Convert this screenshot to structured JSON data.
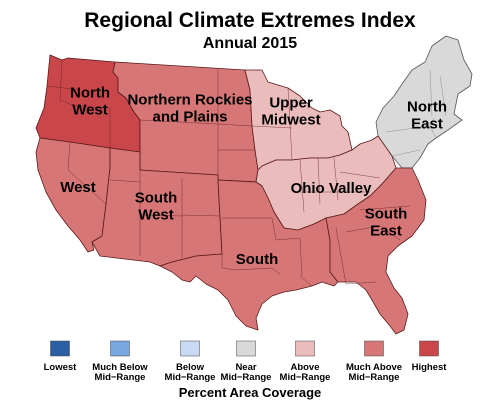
{
  "title": "Regional Climate Extremes Index",
  "subtitle": "Annual 2015",
  "regions": [
    {
      "id": "north-west",
      "lines": [
        "North",
        "West"
      ],
      "category": "Highest"
    },
    {
      "id": "northern-rockies-and-plains",
      "lines": [
        "Northern Rockies",
        "and Plains"
      ],
      "category": "Much Above Mid-Range"
    },
    {
      "id": "upper-midwest",
      "lines": [
        "Upper",
        "Midwest"
      ],
      "category": "Above Mid-Range"
    },
    {
      "id": "north-east",
      "lines": [
        "North",
        "East"
      ],
      "category": "Near Mid-Range"
    },
    {
      "id": "west",
      "lines": [
        "West"
      ],
      "category": "Much Above Mid-Range"
    },
    {
      "id": "south-west",
      "lines": [
        "South",
        "West"
      ],
      "category": "Much Above Mid-Range"
    },
    {
      "id": "ohio-valley",
      "lines": [
        "Ohio Valley"
      ],
      "category": "Above Mid-Range"
    },
    {
      "id": "south",
      "lines": [
        "South"
      ],
      "category": "Much Above Mid-Range"
    },
    {
      "id": "south-east",
      "lines": [
        "South",
        "East"
      ],
      "category": "Much Above Mid-Range"
    }
  ],
  "legend": {
    "title": "Percent Area Coverage",
    "items": [
      {
        "lines": [
          "Lowest"
        ],
        "color": "#2a5fa5"
      },
      {
        "lines": [
          "Much Below",
          "Mid−Range"
        ],
        "color": "#79a7e0"
      },
      {
        "lines": [
          "Below",
          "Mid−Range"
        ],
        "color": "#c8daf4"
      },
      {
        "lines": [
          "Near",
          "Mid−Range"
        ],
        "color": "#d9d9d9"
      },
      {
        "lines": [
          "Above",
          "Mid−Range"
        ],
        "color": "#ebbcbc"
      },
      {
        "lines": [
          "Much Above",
          "Mid−Range"
        ],
        "color": "#d77676"
      },
      {
        "lines": [
          "Highest"
        ],
        "color": "#c9474a"
      }
    ]
  }
}
